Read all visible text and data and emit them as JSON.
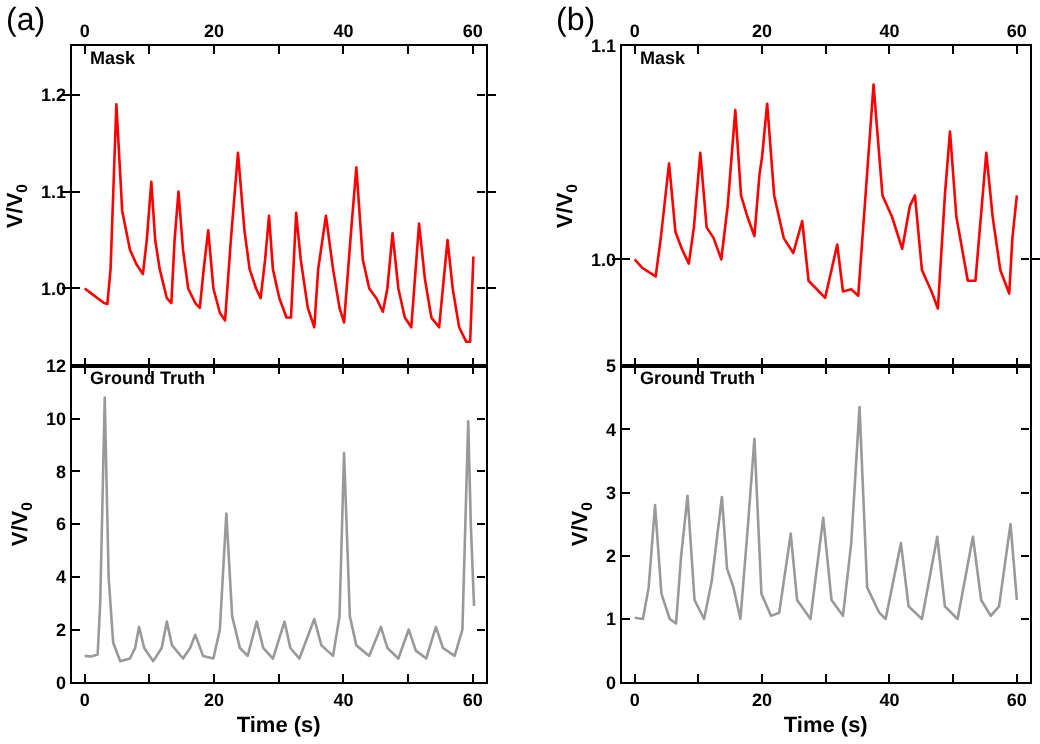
{
  "chart_data": [
    {
      "type": "line",
      "title": "Mask",
      "ylabel": "V/V$_{0}$",
      "annotations": [
        "(a)"
      ],
      "tick_labels": "y",
      "marker": "none",
      "line_style": "solid",
      "xlim": [
        -2,
        62
      ],
      "xticks": [
        {
          "value": 0,
          "label": null
        },
        {
          "value": 10,
          "label": null
        },
        {
          "value": 20,
          "label": null
        },
        {
          "value": 30,
          "label": null
        },
        {
          "value": 40,
          "label": null
        },
        {
          "value": 50,
          "label": null
        },
        {
          "value": 60,
          "label": null
        }
      ],
      "x2lim": [
        -2,
        62
      ],
      "x2ticks": [
        0,
        20,
        40,
        60
      ],
      "ylim": [
        0.92,
        1.25
      ],
      "yticks": [
        {
          "value": 1.0,
          "label": "1.0"
        },
        {
          "value": 1.1,
          "label": "1.1"
        },
        {
          "value": 1.2,
          "label": "1.2"
        }
      ],
      "x": [
        0,
        1,
        2,
        3,
        3.5,
        4,
        4.9,
        5.8,
        7,
        8,
        9,
        9.6,
        10.3,
        10.9,
        11.6,
        12.7,
        13.4,
        13.9,
        14.5,
        15.2,
        16,
        17.1,
        17.8,
        18.4,
        19.1,
        19.9,
        20.9,
        21.7,
        22.6,
        23.7,
        24.7,
        25.5,
        26.5,
        27.2,
        27.9,
        28.5,
        29.1,
        30.1,
        31.2,
        31.9,
        32.7,
        33.4,
        34.5,
        35.5,
        36.1,
        37.3,
        38.4,
        39.4,
        40.1,
        41.2,
        42,
        43,
        44,
        45.1,
        46.1,
        46.8,
        47.6,
        48.5,
        49.5,
        50.5,
        51.7,
        52.6,
        53.6,
        54.8,
        56.1,
        56.9,
        57.9,
        59,
        59.6,
        60.1
      ],
      "series": [
        {
          "color": "#ff0000",
          "values": [
            1.0,
            0.995,
            0.99,
            0.985,
            0.984,
            1.02,
            1.19,
            1.08,
            1.04,
            1.025,
            1.015,
            1.05,
            1.11,
            1.05,
            1.02,
            0.99,
            0.985,
            1.05,
            1.1,
            1.04,
            1.0,
            0.985,
            0.98,
            1.02,
            1.06,
            1.0,
            0.975,
            0.967,
            1.05,
            1.14,
            1.06,
            1.02,
            1.0,
            0.99,
            1.03,
            1.075,
            1.02,
            0.99,
            0.97,
            0.97,
            1.078,
            1.03,
            0.98,
            0.96,
            1.02,
            1.075,
            1.02,
            0.98,
            0.965,
            1.06,
            1.125,
            1.03,
            1.0,
            0.99,
            0.976,
            1.0,
            1.057,
            1.0,
            0.97,
            0.96,
            1.067,
            1.01,
            0.97,
            0.96,
            1.05,
            1.0,
            0.96,
            0.945,
            0.945,
            1.033
          ]
        }
      ]
    },
    {
      "type": "line",
      "title": "Mask",
      "ylabel": "V/V$_{0}$",
      "annotations": [
        "(b)"
      ],
      "tick_labels": "y",
      "marker": "none",
      "line_style": "solid",
      "xlim": [
        -2,
        62
      ],
      "xticks": [
        {
          "value": 0,
          "label": null
        },
        {
          "value": 10,
          "label": null
        },
        {
          "value": 20,
          "label": null
        },
        {
          "value": 30,
          "label": null
        },
        {
          "value": 40,
          "label": null
        },
        {
          "value": 50,
          "label": null
        },
        {
          "value": 60,
          "label": null
        }
      ],
      "x2lim": [
        -2,
        62
      ],
      "x2ticks": [
        0,
        20,
        40,
        60
      ],
      "ylim": [
        0.95,
        1.1
      ],
      "yticks": [
        {
          "value": 1.0,
          "label": "1.0"
        },
        {
          "value": 1.1,
          "label": "1.1"
        }
      ],
      "x": [
        0,
        1.2,
        3.3,
        4.1,
        5.4,
        6.4,
        7.4,
        8.5,
        9.3,
        10.3,
        11.3,
        12.4,
        13.6,
        14.6,
        15.8,
        16.7,
        17.7,
        18.8,
        19.6,
        20,
        20.8,
        21.9,
        23.4,
        24.9,
        26.3,
        27.3,
        28.6,
        29.9,
        30.9,
        31.8,
        32.7,
        34,
        35.1,
        36,
        37.5,
        38.9,
        40.4,
        42,
        43.2,
        44,
        45.1,
        46.6,
        47.6,
        48.7,
        49.5,
        50.5,
        52.3,
        53.5,
        55.2,
        56.2,
        57.4,
        58.8,
        59.3,
        60
      ],
      "series": [
        {
          "color": "#ff0000",
          "values": [
            1.0,
            0.996,
            0.992,
            1.01,
            1.045,
            1.013,
            1.005,
            0.998,
            1.015,
            1.05,
            1.015,
            1.01,
            1.0,
            1.025,
            1.07,
            1.03,
            1.02,
            1.011,
            1.04,
            1.048,
            1.073,
            1.03,
            1.01,
            1.003,
            1.018,
            0.99,
            0.986,
            0.982,
            0.995,
            1.007,
            0.985,
            0.986,
            0.983,
            1.02,
            1.082,
            1.03,
            1.02,
            1.005,
            1.025,
            1.03,
            0.995,
            0.985,
            0.977,
            1.03,
            1.06,
            1.02,
            0.99,
            0.99,
            1.05,
            1.02,
            0.995,
            0.984,
            1.01,
            1.03
          ]
        }
      ]
    },
    {
      "type": "line",
      "title": "Ground Truth",
      "xlabel": "Time (s)",
      "ylabel": "V/V$_{0}$",
      "marker": "none",
      "line_style": "solid",
      "xlim": [
        -2,
        62
      ],
      "xticks": [
        0,
        {
          "value": 10,
          "label": null
        },
        20,
        {
          "value": 30,
          "label": null
        },
        40,
        {
          "value": 50,
          "label": null
        },
        60
      ],
      "ylim": [
        0,
        12
      ],
      "yticks": [
        0,
        2,
        4,
        6,
        8,
        10,
        12
      ],
      "x": [
        0,
        1,
        2,
        2.4,
        3.1,
        3.7,
        4.4,
        5.5,
        7,
        7.8,
        8.4,
        9.2,
        10.6,
        11.9,
        12.7,
        13.5,
        15.2,
        16.3,
        17.1,
        18.3,
        19.9,
        20.9,
        21.9,
        22.8,
        24,
        25.2,
        26.6,
        27.6,
        29.1,
        30.9,
        31.8,
        33.2,
        35.5,
        36.6,
        38.4,
        39.4,
        40.1,
        41,
        42,
        44,
        45.8,
        46.8,
        48.5,
        50.1,
        51.2,
        52.8,
        54.3,
        55.4,
        57.2,
        58.4,
        59.3,
        59.7,
        60.2
      ],
      "series": [
        {
          "color": "#999999",
          "values": [
            1.0,
            0.98,
            1.05,
            3,
            10.8,
            4,
            1.5,
            0.8,
            0.9,
            1.3,
            2.1,
            1.3,
            0.8,
            1.3,
            2.3,
            1.4,
            0.9,
            1.3,
            1.8,
            1.0,
            0.9,
            2.0,
            6.4,
            2.5,
            1.3,
            1.0,
            2.3,
            1.3,
            0.9,
            2.3,
            1.3,
            0.9,
            2.4,
            1.4,
            1.0,
            2.5,
            8.7,
            2.5,
            1.4,
            1.0,
            2.1,
            1.3,
            0.9,
            2.0,
            1.2,
            0.9,
            2.1,
            1.3,
            1.0,
            2.0,
            9.9,
            6,
            2.9
          ]
        }
      ]
    },
    {
      "type": "line",
      "title": "Ground Truth",
      "xlabel": "Time (s)",
      "ylabel": "V/V$_{0}$",
      "marker": "none",
      "line_style": "solid",
      "xlim": [
        -2,
        62
      ],
      "xticks": [
        0,
        {
          "value": 10,
          "label": null
        },
        20,
        {
          "value": 30,
          "label": null
        },
        40,
        {
          "value": 50,
          "label": null
        },
        60
      ],
      "ylim": [
        0,
        5
      ],
      "yticks": [
        0,
        1,
        2,
        3,
        4,
        5
      ],
      "x": [
        0,
        1.3,
        2.2,
        3.2,
        4.2,
        5.5,
        6.5,
        7.3,
        8.3,
        9.4,
        10.9,
        12.1,
        13.7,
        14.5,
        15.5,
        16.6,
        17.8,
        18.8,
        19.9,
        21.4,
        22.7,
        24.5,
        25.5,
        27.6,
        29.6,
        30.9,
        32.7,
        34,
        35.3,
        36.5,
        38.4,
        39.4,
        41.8,
        43,
        45.1,
        47.5,
        48.7,
        50.7,
        53.1,
        54.4,
        55.9,
        57.2,
        59,
        60
      ],
      "series": [
        {
          "color": "#999999",
          "values": [
            1.02,
            1.0,
            1.5,
            2.8,
            1.4,
            1.0,
            0.93,
            2.0,
            2.95,
            1.3,
            1.0,
            1.6,
            2.93,
            1.8,
            1.5,
            1.0,
            2.5,
            3.85,
            1.4,
            1.05,
            1.1,
            2.35,
            1.3,
            1.0,
            2.6,
            1.3,
            1.05,
            2.2,
            4.35,
            1.5,
            1.1,
            1.0,
            2.2,
            1.2,
            1.0,
            2.3,
            1.2,
            1.0,
            2.3,
            1.3,
            1.05,
            1.2,
            2.5,
            1.3
          ]
        }
      ]
    }
  ]
}
